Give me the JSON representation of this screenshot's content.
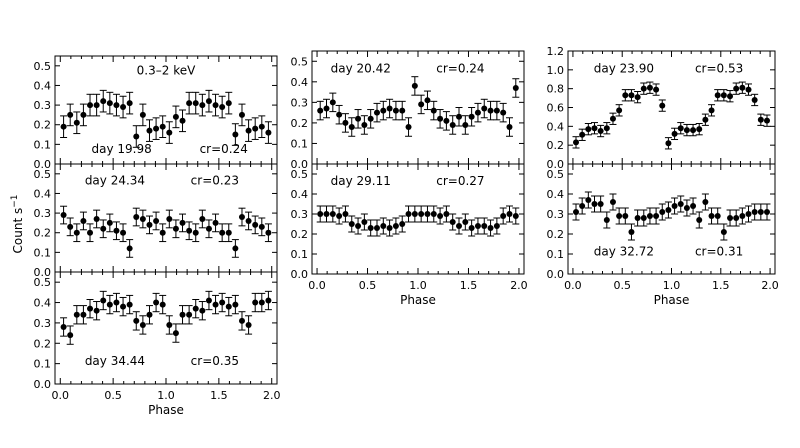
{
  "figure": {
    "ylabel": "Count s",
    "ylabel_superscript": "−1",
    "xlabel": "Phase"
  },
  "chart_data": [
    {
      "type": "scatter",
      "panel": "left-1",
      "energy_label": "0.3–2 keV",
      "day_label": "day 19.98",
      "cr_label": "cr=0.24",
      "xlim": [
        -0.05,
        2.05
      ],
      "ylim": [
        0.0,
        0.55
      ],
      "yticks": [
        "0.0",
        "0.1",
        "0.2",
        "0.3",
        "0.4",
        "0.5"
      ],
      "xticks": [],
      "y": [
        0.19,
        0.25,
        0.21,
        0.25,
        0.3,
        0.3,
        0.32,
        0.31,
        0.3,
        0.29,
        0.31,
        0.14,
        0.25,
        0.17,
        0.18,
        0.19,
        0.16,
        0.24,
        0.22,
        0.31,
        0.31,
        0.3,
        0.32,
        0.3,
        0.29,
        0.31,
        0.15,
        0.25,
        0.17,
        0.18,
        0.19,
        0.16
      ],
      "err": 0.055
    },
    {
      "type": "scatter",
      "panel": "left-2",
      "day_label": "day 24.34",
      "cr_label": "cr=0.23",
      "xlim": [
        -0.05,
        2.05
      ],
      "ylim": [
        0.0,
        0.55
      ],
      "yticks": [
        "0.0",
        "0.1",
        "0.2",
        "0.3",
        "0.4",
        "0.5"
      ],
      "xticks": [],
      "y": [
        0.29,
        0.23,
        0.2,
        0.26,
        0.2,
        0.27,
        0.22,
        0.25,
        0.21,
        0.2,
        0.12,
        0.28,
        0.27,
        0.24,
        0.26,
        0.2,
        0.27,
        0.22,
        0.25,
        0.21,
        0.2,
        0.27,
        0.22,
        0.25,
        0.2,
        0.2,
        0.12,
        0.28,
        0.26,
        0.24,
        0.23,
        0.2
      ],
      "err": 0.045
    },
    {
      "type": "scatter",
      "panel": "left-3",
      "day_label": "day 34.44",
      "cr_label": "cr=0.35",
      "xlim": [
        -0.05,
        2.05
      ],
      "ylim": [
        0.0,
        0.55
      ],
      "yticks": [
        "0.0",
        "0.1",
        "0.2",
        "0.3",
        "0.4",
        "0.5"
      ],
      "xticks": [
        "0.0",
        "0.5",
        "1.0",
        "1.5",
        "2.0"
      ],
      "y": [
        0.28,
        0.24,
        0.34,
        0.34,
        0.37,
        0.36,
        0.41,
        0.39,
        0.4,
        0.38,
        0.39,
        0.31,
        0.29,
        0.34,
        0.4,
        0.39,
        0.29,
        0.25,
        0.34,
        0.34,
        0.37,
        0.36,
        0.41,
        0.39,
        0.4,
        0.38,
        0.39,
        0.31,
        0.29,
        0.4,
        0.4,
        0.41
      ],
      "err": 0.045
    },
    {
      "type": "scatter",
      "panel": "middle-1",
      "day_label": "day 20.42",
      "cr_label": "cr=0.24",
      "xlim": [
        -0.05,
        2.05
      ],
      "ylim": [
        0.0,
        0.55
      ],
      "yticks": [
        "0.0",
        "0.1",
        "0.2",
        "0.3",
        "0.4",
        "0.5"
      ],
      "xticks": [],
      "y": [
        0.26,
        0.27,
        0.3,
        0.24,
        0.2,
        0.18,
        0.22,
        0.19,
        0.22,
        0.25,
        0.26,
        0.27,
        0.26,
        0.26,
        0.18,
        0.38,
        0.29,
        0.31,
        0.26,
        0.22,
        0.21,
        0.19,
        0.23,
        0.19,
        0.23,
        0.25,
        0.27,
        0.26,
        0.26,
        0.25,
        0.18,
        0.37
      ],
      "err": 0.045
    },
    {
      "type": "scatter",
      "panel": "middle-2",
      "day_label": "day 29.11",
      "cr_label": "cr=0.27",
      "xlim": [
        -0.05,
        2.05
      ],
      "ylim": [
        0.0,
        0.55
      ],
      "yticks": [
        "0.0",
        "0.1",
        "0.2",
        "0.3",
        "0.4",
        "0.5"
      ],
      "xticks": [
        "0.0",
        "0.5",
        "1.0",
        "1.5",
        "2.0"
      ],
      "y": [
        0.3,
        0.3,
        0.3,
        0.29,
        0.3,
        0.25,
        0.24,
        0.26,
        0.23,
        0.23,
        0.24,
        0.23,
        0.24,
        0.25,
        0.3,
        0.3,
        0.3,
        0.3,
        0.3,
        0.29,
        0.3,
        0.26,
        0.24,
        0.26,
        0.23,
        0.24,
        0.24,
        0.23,
        0.24,
        0.29,
        0.3,
        0.29
      ],
      "err": 0.04
    },
    {
      "type": "scatter",
      "panel": "right-1",
      "day_label": "day 23.90",
      "cr_label": "cr=0.53",
      "xlim": [
        -0.05,
        2.05
      ],
      "ylim": [
        0.0,
        1.2
      ],
      "yticks": [
        "0.0",
        "0.2",
        "0.4",
        "0.6",
        "0.8",
        "1.0",
        "1.2"
      ],
      "xticks": [],
      "y": [
        0.23,
        0.31,
        0.37,
        0.38,
        0.35,
        0.38,
        0.48,
        0.57,
        0.73,
        0.73,
        0.71,
        0.8,
        0.81,
        0.79,
        0.62,
        0.22,
        0.32,
        0.38,
        0.36,
        0.36,
        0.37,
        0.47,
        0.57,
        0.73,
        0.73,
        0.72,
        0.8,
        0.81,
        0.79,
        0.68,
        0.47,
        0.46
      ],
      "err": 0.06
    },
    {
      "type": "scatter",
      "panel": "right-2",
      "day_label": "day 32.72",
      "cr_label": "cr=0.31",
      "xlim": [
        -0.05,
        2.05
      ],
      "ylim": [
        0.0,
        0.55
      ],
      "yticks": [
        "0.0",
        "0.1",
        "0.2",
        "0.3",
        "0.4",
        "0.5"
      ],
      "xticks": [
        "0.0",
        "0.5",
        "1.0",
        "1.5",
        "2.0"
      ],
      "y": [
        0.31,
        0.34,
        0.37,
        0.35,
        0.35,
        0.27,
        0.36,
        0.29,
        0.29,
        0.21,
        0.28,
        0.28,
        0.29,
        0.29,
        0.31,
        0.32,
        0.34,
        0.35,
        0.33,
        0.34,
        0.27,
        0.36,
        0.29,
        0.29,
        0.21,
        0.28,
        0.28,
        0.29,
        0.3,
        0.31,
        0.31,
        0.31
      ],
      "err": 0.04
    }
  ]
}
